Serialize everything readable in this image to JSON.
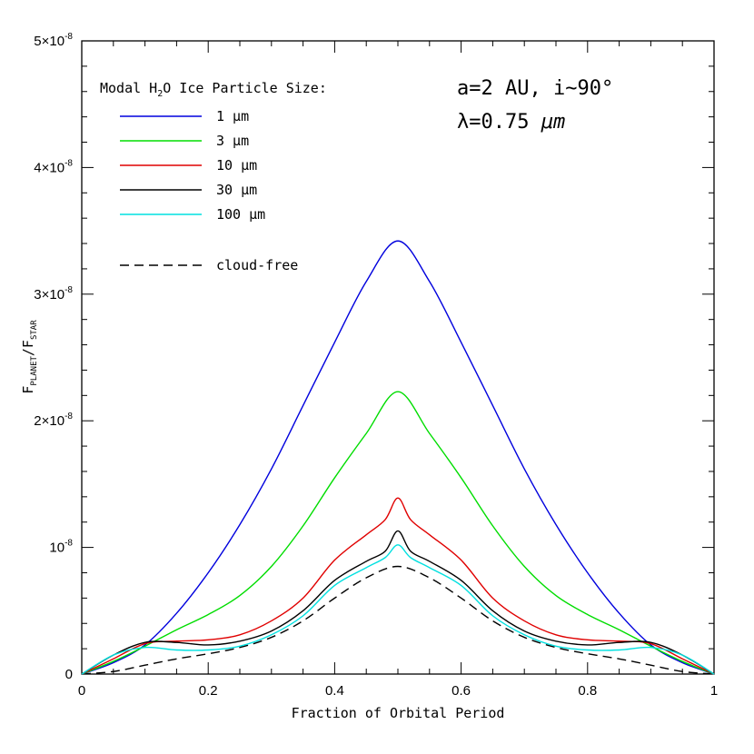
{
  "chart_data": {
    "type": "line",
    "title": "",
    "xlabel": "Fraction of Orbital Period",
    "ylabel_parts": {
      "main1": "F",
      "sub1": "PLANET",
      "slash": "/",
      "main2": "F",
      "sub2": "STAR"
    },
    "xlim": [
      0,
      1
    ],
    "ylim": [
      0,
      5e-08
    ],
    "x_ticks": [
      {
        "value": 0,
        "label": "0"
      },
      {
        "value": 0.2,
        "label": "0.2"
      },
      {
        "value": 0.4,
        "label": "0.4"
      },
      {
        "value": 0.6,
        "label": "0.6"
      },
      {
        "value": 0.8,
        "label": "0.8"
      },
      {
        "value": 1,
        "label": "1"
      }
    ],
    "y_ticks": [
      {
        "value": 0,
        "label": "0",
        "exp": ""
      },
      {
        "value": 1e-08,
        "label": "10",
        "exp": "-8"
      },
      {
        "value": 2e-08,
        "label": "2×10",
        "exp": "-8"
      },
      {
        "value": 3e-08,
        "label": "3×10",
        "exp": "-8"
      },
      {
        "value": 4e-08,
        "label": "4×10",
        "exp": "-8"
      },
      {
        "value": 5e-08,
        "label": "5×10",
        "exp": "-8"
      }
    ],
    "legend": {
      "title_parts": {
        "pre": "Modal H",
        "sub": "2",
        "post": "O Ice Particle Size:"
      },
      "placement": "top-left"
    },
    "annotations": {
      "line1": "a=2 AU, i~90°",
      "line2_pre": "λ=0.75 ",
      "line2_unit": "μm"
    },
    "series": [
      {
        "name": "1 μm",
        "color": "#0000dd",
        "dash": "solid",
        "points": [
          [
            0,
            0
          ],
          [
            0.05,
            9e-10
          ],
          [
            0.1,
            2.3e-09
          ],
          [
            0.15,
            4.8e-09
          ],
          [
            0.2,
            8e-09
          ],
          [
            0.25,
            1.18e-08
          ],
          [
            0.3,
            1.62e-08
          ],
          [
            0.35,
            2.12e-08
          ],
          [
            0.4,
            2.62e-08
          ],
          [
            0.45,
            3.1e-08
          ],
          [
            0.5,
            3.42e-08
          ],
          [
            0.55,
            3.1e-08
          ],
          [
            0.6,
            2.62e-08
          ],
          [
            0.65,
            2.12e-08
          ],
          [
            0.7,
            1.62e-08
          ],
          [
            0.75,
            1.18e-08
          ],
          [
            0.8,
            8e-09
          ],
          [
            0.85,
            4.8e-09
          ],
          [
            0.9,
            2.3e-09
          ],
          [
            0.95,
            9e-10
          ],
          [
            1,
            0
          ]
        ]
      },
      {
        "name": "3 μm",
        "color": "#00dd00",
        "dash": "solid",
        "points": [
          [
            0,
            0
          ],
          [
            0.05,
            1e-09
          ],
          [
            0.1,
            2.2e-09
          ],
          [
            0.15,
            3.5e-09
          ],
          [
            0.2,
            4.7e-09
          ],
          [
            0.25,
            6.2e-09
          ],
          [
            0.3,
            8.5e-09
          ],
          [
            0.35,
            1.17e-08
          ],
          [
            0.4,
            1.55e-08
          ],
          [
            0.45,
            1.9e-08
          ],
          [
            0.5,
            2.23e-08
          ],
          [
            0.55,
            1.9e-08
          ],
          [
            0.6,
            1.55e-08
          ],
          [
            0.65,
            1.17e-08
          ],
          [
            0.7,
            8.5e-09
          ],
          [
            0.75,
            6.2e-09
          ],
          [
            0.8,
            4.7e-09
          ],
          [
            0.85,
            3.5e-09
          ],
          [
            0.9,
            2.2e-09
          ],
          [
            0.95,
            1e-09
          ],
          [
            1,
            0
          ]
        ]
      },
      {
        "name": "10 μm",
        "color": "#e00000",
        "dash": "solid",
        "points": [
          [
            0,
            0
          ],
          [
            0.05,
            1.2e-09
          ],
          [
            0.1,
            2.4e-09
          ],
          [
            0.15,
            2.6e-09
          ],
          [
            0.2,
            2.7e-09
          ],
          [
            0.25,
            3.1e-09
          ],
          [
            0.3,
            4.2e-09
          ],
          [
            0.35,
            6e-09
          ],
          [
            0.4,
            9e-09
          ],
          [
            0.45,
            1.1e-08
          ],
          [
            0.48,
            1.22e-08
          ],
          [
            0.5,
            1.39e-08
          ],
          [
            0.52,
            1.22e-08
          ],
          [
            0.55,
            1.1e-08
          ],
          [
            0.6,
            9e-09
          ],
          [
            0.65,
            6e-09
          ],
          [
            0.7,
            4.2e-09
          ],
          [
            0.75,
            3.1e-09
          ],
          [
            0.8,
            2.7e-09
          ],
          [
            0.85,
            2.6e-09
          ],
          [
            0.9,
            2.4e-09
          ],
          [
            0.95,
            1.2e-09
          ],
          [
            1,
            0
          ]
        ]
      },
      {
        "name": "30 μm",
        "color": "#000000",
        "dash": "solid",
        "points": [
          [
            0,
            0
          ],
          [
            0.05,
            1.5e-09
          ],
          [
            0.1,
            2.5e-09
          ],
          [
            0.15,
            2.5e-09
          ],
          [
            0.2,
            2.3e-09
          ],
          [
            0.25,
            2.6e-09
          ],
          [
            0.3,
            3.4e-09
          ],
          [
            0.35,
            5e-09
          ],
          [
            0.4,
            7.4e-09
          ],
          [
            0.45,
            8.9e-09
          ],
          [
            0.48,
            9.7e-09
          ],
          [
            0.5,
            1.13e-08
          ],
          [
            0.52,
            9.7e-09
          ],
          [
            0.55,
            8.9e-09
          ],
          [
            0.6,
            7.4e-09
          ],
          [
            0.65,
            5e-09
          ],
          [
            0.7,
            3.4e-09
          ],
          [
            0.75,
            2.6e-09
          ],
          [
            0.8,
            2.3e-09
          ],
          [
            0.85,
            2.5e-09
          ],
          [
            0.9,
            2.5e-09
          ],
          [
            0.95,
            1.5e-09
          ],
          [
            1,
            0
          ]
        ]
      },
      {
        "name": "100 μm",
        "color": "#00e0e0",
        "dash": "solid",
        "points": [
          [
            0,
            0
          ],
          [
            0.05,
            1.5e-09
          ],
          [
            0.1,
            2.1e-09
          ],
          [
            0.15,
            1.9e-09
          ],
          [
            0.2,
            1.9e-09
          ],
          [
            0.25,
            2.2e-09
          ],
          [
            0.3,
            3.1e-09
          ],
          [
            0.35,
            4.6e-09
          ],
          [
            0.4,
            7e-09
          ],
          [
            0.45,
            8.4e-09
          ],
          [
            0.48,
            9.2e-09
          ],
          [
            0.5,
            1.02e-08
          ],
          [
            0.52,
            9.2e-09
          ],
          [
            0.55,
            8.4e-09
          ],
          [
            0.6,
            7e-09
          ],
          [
            0.65,
            4.6e-09
          ],
          [
            0.7,
            3.1e-09
          ],
          [
            0.75,
            2.2e-09
          ],
          [
            0.8,
            1.9e-09
          ],
          [
            0.85,
            1.9e-09
          ],
          [
            0.9,
            2.1e-09
          ],
          [
            0.95,
            1.5e-09
          ],
          [
            1,
            0
          ]
        ]
      },
      {
        "name": "cloud-free",
        "color": "#000000",
        "dash": "dashed",
        "points": [
          [
            0,
            0
          ],
          [
            0.05,
            2e-10
          ],
          [
            0.1,
            7e-10
          ],
          [
            0.15,
            1.2e-09
          ],
          [
            0.2,
            1.6e-09
          ],
          [
            0.25,
            2.1e-09
          ],
          [
            0.3,
            2.9e-09
          ],
          [
            0.35,
            4.2e-09
          ],
          [
            0.4,
            6e-09
          ],
          [
            0.45,
            7.6e-09
          ],
          [
            0.5,
            8.5e-09
          ],
          [
            0.55,
            7.6e-09
          ],
          [
            0.6,
            6e-09
          ],
          [
            0.65,
            4.2e-09
          ],
          [
            0.7,
            2.9e-09
          ],
          [
            0.75,
            2.1e-09
          ],
          [
            0.8,
            1.6e-09
          ],
          [
            0.85,
            1.2e-09
          ],
          [
            0.9,
            7e-10
          ],
          [
            0.95,
            2e-10
          ],
          [
            1,
            0
          ]
        ]
      }
    ]
  }
}
